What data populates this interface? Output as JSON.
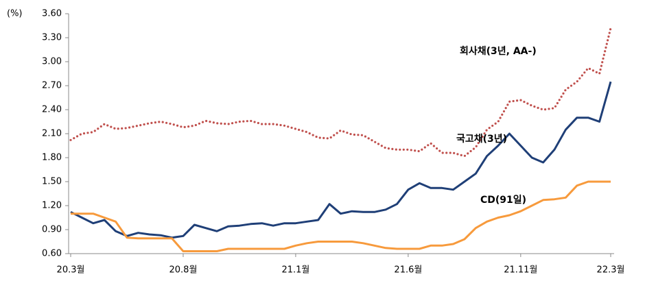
{
  "chart_data": {
    "type": "line",
    "y_label": "(%)",
    "categories": [
      "20.3월",
      null,
      null,
      null,
      null,
      null,
      null,
      null,
      null,
      null,
      "20.8월",
      null,
      null,
      null,
      null,
      null,
      null,
      null,
      null,
      null,
      "21.1월",
      null,
      null,
      null,
      null,
      null,
      null,
      null,
      null,
      null,
      "21.6월",
      null,
      null,
      null,
      null,
      null,
      null,
      null,
      null,
      null,
      "21.11월",
      null,
      null,
      null,
      null,
      null,
      null,
      null,
      "22.3월"
    ],
    "series": [
      {
        "name": "회사채(3년, AA-)",
        "color": "#c0504d",
        "style": "dotted",
        "values": [
          2.02,
          2.1,
          2.12,
          2.22,
          2.16,
          2.17,
          2.2,
          2.23,
          2.25,
          2.22,
          2.18,
          2.2,
          2.26,
          2.23,
          2.22,
          2.25,
          2.26,
          2.22,
          2.22,
          2.2,
          2.16,
          2.12,
          2.05,
          2.04,
          2.14,
          2.09,
          2.08,
          2.0,
          1.92,
          1.9,
          1.9,
          1.88,
          1.98,
          1.86,
          1.86,
          1.82,
          1.93,
          2.15,
          2.25,
          2.5,
          2.52,
          2.45,
          2.4,
          2.42,
          2.65,
          2.75,
          2.92,
          2.85,
          3.42
        ]
      },
      {
        "name": "국고채(3년)",
        "color": "#1f3f77",
        "style": "solid",
        "values": [
          1.12,
          1.05,
          0.98,
          1.02,
          0.88,
          0.82,
          0.86,
          0.84,
          0.83,
          0.8,
          0.82,
          0.96,
          0.92,
          0.88,
          0.94,
          0.95,
          0.97,
          0.98,
          0.95,
          0.98,
          0.98,
          1.0,
          1.02,
          1.22,
          1.1,
          1.13,
          1.12,
          1.12,
          1.15,
          1.22,
          1.4,
          1.48,
          1.42,
          1.42,
          1.4,
          1.5,
          1.6,
          1.82,
          1.95,
          2.1,
          1.95,
          1.8,
          1.74,
          1.9,
          2.15,
          2.3,
          2.3,
          2.25,
          2.75
        ]
      },
      {
        "name": "CD(91일)",
        "color": "#f79a3c",
        "style": "solid",
        "values": [
          1.1,
          1.1,
          1.1,
          1.05,
          1.0,
          0.8,
          0.79,
          0.79,
          0.79,
          0.79,
          0.63,
          0.63,
          0.63,
          0.63,
          0.66,
          0.66,
          0.66,
          0.66,
          0.66,
          0.66,
          0.7,
          0.73,
          0.75,
          0.75,
          0.75,
          0.75,
          0.73,
          0.7,
          0.67,
          0.66,
          0.66,
          0.66,
          0.7,
          0.7,
          0.72,
          0.78,
          0.92,
          1.0,
          1.05,
          1.08,
          1.13,
          1.2,
          1.27,
          1.28,
          1.3,
          1.45,
          1.5,
          1.5,
          1.5
        ]
      }
    ],
    "ylim": [
      0.6,
      3.6
    ],
    "yticks": [
      {
        "value": 0.6,
        "label": "0.60"
      },
      {
        "value": 0.9,
        "label": "0.90"
      },
      {
        "value": 1.2,
        "label": "1.20"
      },
      {
        "value": 1.5,
        "label": "1.50"
      },
      {
        "value": 1.8,
        "label": "1.80"
      },
      {
        "value": 2.1,
        "label": "2.10"
      },
      {
        "value": 2.4,
        "label": "2.40"
      },
      {
        "value": 2.7,
        "label": "2.70"
      },
      {
        "value": 3.0,
        "label": "3.00"
      },
      {
        "value": 3.3,
        "label": "3.30"
      },
      {
        "value": 3.6,
        "label": "3.60"
      }
    ],
    "grid": false
  }
}
